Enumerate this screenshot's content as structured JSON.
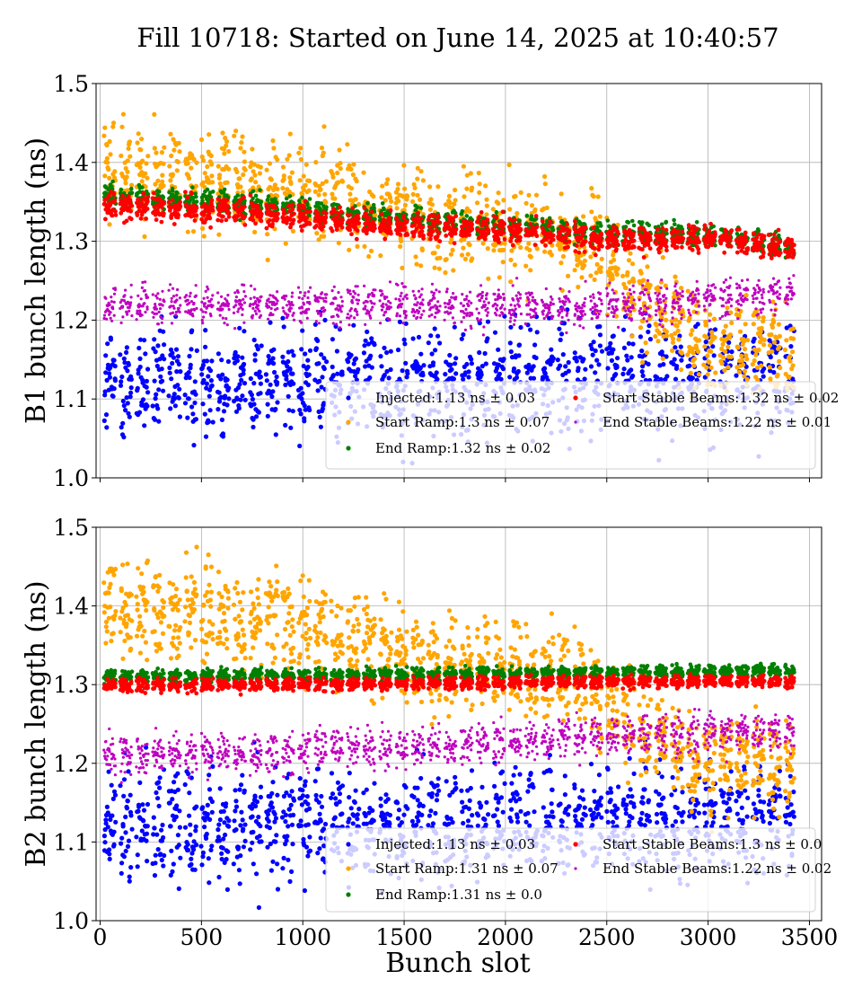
{
  "title": "Fill 10718: Started on June 14, 2025 at 10:40:57",
  "chart_data": [
    {
      "type": "scatter",
      "ylabel": "B1 bunch length (ns)",
      "xlabel": "",
      "xlim": [
        -20,
        3560
      ],
      "ylim": [
        1.0,
        1.5
      ],
      "xticks": [
        0,
        500,
        1000,
        1500,
        2000,
        2500,
        3000,
        3500
      ],
      "yticks": [
        1.0,
        1.1,
        1.2,
        1.3,
        1.4,
        1.5
      ],
      "grid": true,
      "legend_position": "lower-right",
      "series": [
        {
          "name": "Injected",
          "legend": "Injected:1.13 ns ± 0.03",
          "color": "#0000ff",
          "profile": [
            [
              20,
              1.12
            ],
            [
              3420,
              1.13
            ]
          ],
          "jitter": 0.035
        },
        {
          "name": "Start Ramp",
          "legend": "Start Ramp:1.3 ns ± 0.07",
          "color": "#ffa500",
          "profile": [
            [
              20,
              1.39
            ],
            [
              500,
              1.38
            ],
            [
              1000,
              1.36
            ],
            [
              1500,
              1.33
            ],
            [
              2000,
              1.32
            ],
            [
              2300,
              1.3
            ],
            [
              2500,
              1.28
            ],
            [
              2700,
              1.22
            ],
            [
              3000,
              1.17
            ],
            [
              3420,
              1.16
            ]
          ],
          "jitter": 0.03
        },
        {
          "name": "End Ramp",
          "legend": "End Ramp:1.32 ns ± 0.02",
          "color": "#008000",
          "profile": [
            [
              20,
              1.36
            ],
            [
              500,
              1.35
            ],
            [
              1000,
              1.34
            ],
            [
              1500,
              1.33
            ],
            [
              2000,
              1.32
            ],
            [
              2500,
              1.31
            ],
            [
              3000,
              1.31
            ],
            [
              3420,
              1.29
            ]
          ],
          "jitter": 0.007
        },
        {
          "name": "Start Stable Beams",
          "legend": "Start Stable Beams:1.32 ns ± 0.02",
          "color": "#ff0000",
          "profile": [
            [
              20,
              1.345
            ],
            [
              500,
              1.34
            ],
            [
              1000,
              1.33
            ],
            [
              1500,
              1.32
            ],
            [
              2000,
              1.315
            ],
            [
              2500,
              1.3
            ],
            [
              3000,
              1.305
            ],
            [
              3420,
              1.29
            ]
          ],
          "jitter": 0.008
        },
        {
          "name": "End Stable Beams",
          "legend": "End Stable Beams:1.22 ns ± 0.01",
          "color": "#bf00bf",
          "profile": [
            [
              20,
              1.22
            ],
            [
              1500,
              1.22
            ],
            [
              2500,
              1.215
            ],
            [
              3420,
              1.235
            ]
          ],
          "jitter": 0.012
        }
      ]
    },
    {
      "type": "scatter",
      "ylabel": "B2 bunch length (ns)",
      "xlabel": "Bunch slot",
      "xlim": [
        -20,
        3560
      ],
      "ylim": [
        1.0,
        1.5
      ],
      "xticks": [
        0,
        500,
        1000,
        1500,
        2000,
        2500,
        3000,
        3500
      ],
      "yticks": [
        1.0,
        1.1,
        1.2,
        1.3,
        1.4,
        1.5
      ],
      "grid": true,
      "legend_position": "lower-right",
      "series": [
        {
          "name": "Injected",
          "legend": "Injected:1.13 ns ± 0.03",
          "color": "#0000ff",
          "profile": [
            [
              20,
              1.12
            ],
            [
              3420,
              1.13
            ]
          ],
          "jitter": 0.035
        },
        {
          "name": "Start Ramp",
          "legend": "Start Ramp:1.31 ns ± 0.07",
          "color": "#ffa500",
          "profile": [
            [
              20,
              1.4
            ],
            [
              500,
              1.39
            ],
            [
              1000,
              1.37
            ],
            [
              1300,
              1.36
            ],
            [
              1500,
              1.33
            ],
            [
              2000,
              1.32
            ],
            [
              2400,
              1.31
            ],
            [
              2500,
              1.28
            ],
            [
              2700,
              1.24
            ],
            [
              3000,
              1.2
            ],
            [
              3420,
              1.19
            ]
          ],
          "jitter": 0.03
        },
        {
          "name": "End Ramp",
          "legend": "End Ramp:1.31 ns ± 0.0",
          "color": "#008000",
          "profile": [
            [
              20,
              1.31
            ],
            [
              3420,
              1.318
            ]
          ],
          "jitter": 0.004
        },
        {
          "name": "Start Stable Beams",
          "legend": "Start Stable Beams:1.3 ns ± 0.0",
          "color": "#ff0000",
          "profile": [
            [
              20,
              1.298
            ],
            [
              3420,
              1.305
            ]
          ],
          "jitter": 0.004
        },
        {
          "name": "End Stable Beams",
          "legend": "End Stable Beams:1.22 ns ± 0.02",
          "color": "#bf00bf",
          "profile": [
            [
              20,
              1.21
            ],
            [
              1500,
              1.22
            ],
            [
              2500,
              1.235
            ],
            [
              3420,
              1.24
            ]
          ],
          "jitter": 0.012
        }
      ]
    }
  ]
}
